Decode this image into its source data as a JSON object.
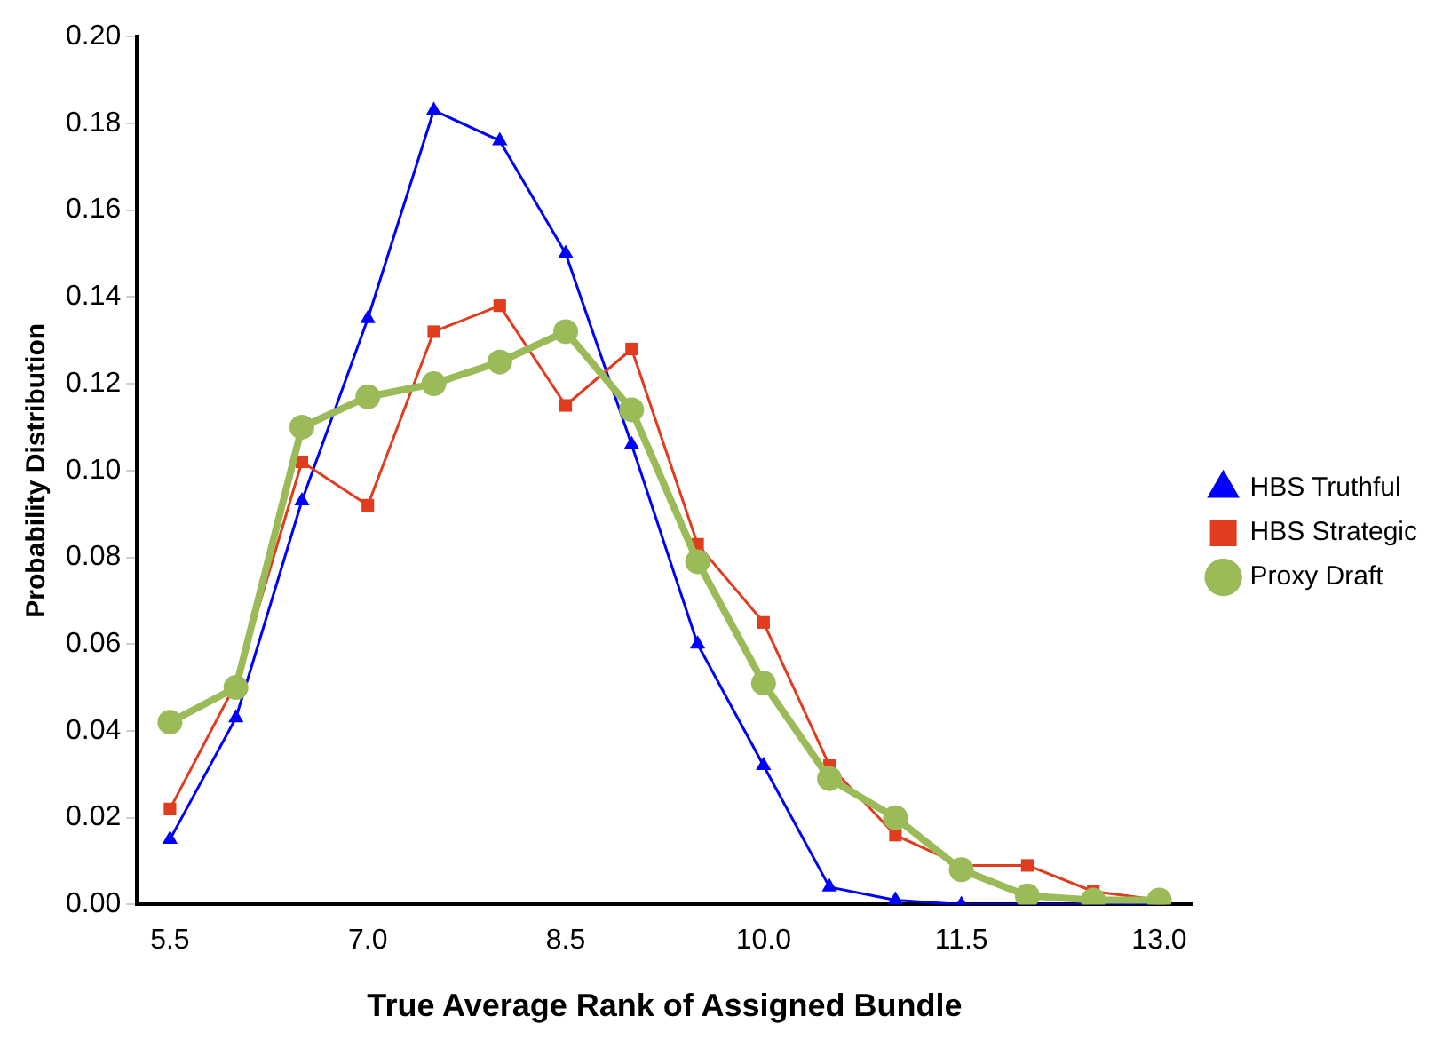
{
  "chart_data": {
    "type": "line",
    "xlabel": "True Average Rank of Assigned Bundle",
    "ylabel": "Probability Distribution",
    "x": [
      5.5,
      6.0,
      6.5,
      7.0,
      7.5,
      8.0,
      8.5,
      9.0,
      9.5,
      10.0,
      10.5,
      11.0,
      11.5,
      12.0,
      12.5,
      13.0
    ],
    "series": [
      {
        "name": "HBS Truthful",
        "color": "#0000ff",
        "marker": "triangle",
        "values": [
          0.015,
          0.043,
          0.093,
          0.135,
          0.183,
          0.176,
          0.15,
          0.106,
          0.06,
          0.032,
          0.004,
          0.001,
          0,
          0,
          0,
          0
        ]
      },
      {
        "name": "HBS Strategic",
        "color": "#e03c1e",
        "marker": "square",
        "values": [
          0.022,
          0.051,
          0.102,
          0.092,
          0.132,
          0.138,
          0.115,
          0.128,
          0.083,
          0.065,
          0.032,
          0.016,
          0.009,
          0.009,
          0.003,
          0.001
        ]
      },
      {
        "name": "Proxy Draft",
        "color": "#9bbb59",
        "marker": "circle",
        "values": [
          0.042,
          0.05,
          0.11,
          0.117,
          0.12,
          0.125,
          0.132,
          0.114,
          0.079,
          0.051,
          0.029,
          0.02,
          0.008,
          0.002,
          0.001,
          0.001
        ]
      }
    ],
    "xlim": [
      5.25,
      13.25
    ],
    "xticks": [
      5.5,
      {
        "value": 7,
        "label": "7.0"
      },
      8.5,
      {
        "value": 10,
        "label": "10.0"
      },
      11.5,
      {
        "value": 13,
        "label": "13.0"
      }
    ],
    "ylim": [
      0,
      0.2
    ],
    "yticks": [
      {
        "value": 0,
        "label": "0.00"
      },
      {
        "value": 0.02,
        "label": "0.02"
      },
      {
        "value": 0.04,
        "label": "0.04"
      },
      {
        "value": 0.06,
        "label": "0.06"
      },
      {
        "value": 0.08,
        "label": "0.08"
      },
      {
        "value": 0.1,
        "label": "0.10"
      },
      {
        "value": 0.12,
        "label": "0.12"
      },
      {
        "value": 0.14,
        "label": "0.14"
      },
      {
        "value": 0.16,
        "label": "0.16"
      },
      {
        "value": 0.18,
        "label": "0.18"
      },
      {
        "value": 0.2,
        "label": "0.20"
      }
    ],
    "grid": false,
    "legend": "right"
  }
}
